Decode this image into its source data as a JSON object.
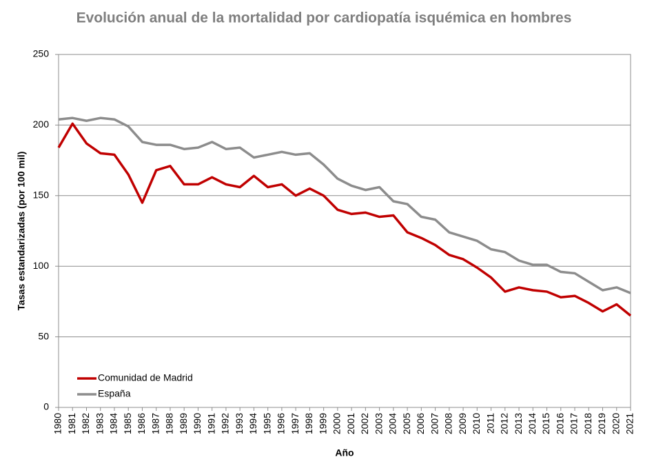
{
  "chart_data": {
    "type": "line",
    "title": "Evolución anual de la mortalidad por cardiopatía isquémica en hombres",
    "x_label": "Año",
    "y_label": "Tasas estandarizadas (por 100 mil)",
    "categories": [
      "1980",
      "1981",
      "1982",
      "1983",
      "1984",
      "1985",
      "1986",
      "1987",
      "1988",
      "1989",
      "1990",
      "1991",
      "1992",
      "1993",
      "1994",
      "1995",
      "1996",
      "1997",
      "1998",
      "1999",
      "2000",
      "2001",
      "2002",
      "2003",
      "2004",
      "2005",
      "2006",
      "2007",
      "2008",
      "2009",
      "2010",
      "2011",
      "2012",
      "2013",
      "2014",
      "2015",
      "2016",
      "2017",
      "2018",
      "2019",
      "2020",
      "2021"
    ],
    "series": [
      {
        "name": "Comunidad de Madrid",
        "color": "#c00000",
        "values": [
          184,
          201,
          187,
          180,
          179,
          165,
          145,
          168,
          171,
          158,
          158,
          163,
          158,
          156,
          164,
          156,
          158,
          150,
          155,
          150,
          140,
          137,
          138,
          135,
          136,
          124,
          120,
          115,
          108,
          105,
          99,
          92,
          82,
          85,
          83,
          82,
          78,
          79,
          74,
          68,
          73,
          65
        ]
      },
      {
        "name": "España",
        "color": "#8c8c8c",
        "values": [
          204,
          205,
          203,
          205,
          204,
          199,
          188,
          186,
          186,
          183,
          184,
          188,
          183,
          184,
          177,
          179,
          181,
          179,
          180,
          172,
          162,
          157,
          154,
          156,
          146,
          144,
          135,
          133,
          124,
          121,
          118,
          112,
          110,
          104,
          101,
          101,
          96,
          95,
          89,
          83,
          85,
          81
        ]
      }
    ],
    "ylim": [
      0,
      250
    ],
    "yticks": [
      0,
      50,
      100,
      150,
      200,
      250
    ],
    "grid": true,
    "legend": "bottom-left"
  }
}
